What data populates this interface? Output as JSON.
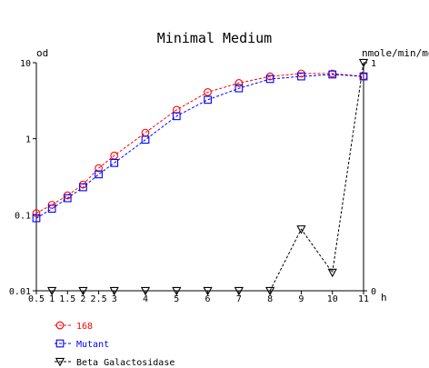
{
  "chart_data": {
    "type": "line",
    "title": "Minimal Medium",
    "left_axis_label": "od",
    "right_axis_label": "nmole/min/mg",
    "x_unit_label": "h",
    "x_ticks": [
      "0.5",
      "1",
      "1.5",
      "2",
      "2.5",
      "3",
      "4",
      "5",
      "6",
      "7",
      "8",
      "9",
      "10",
      "11"
    ],
    "left_ticks": [
      "10",
      "1",
      "0.1",
      "0.01"
    ],
    "right_ticks": [
      "1",
      "0"
    ],
    "xlim": [
      0.5,
      11
    ],
    "ylim_left": [
      0.01,
      10
    ],
    "ylim_right": [
      0,
      1
    ],
    "left_scale": "log",
    "grid": false,
    "legend_position": "bottom-left",
    "series": [
      {
        "name": "168",
        "axis": "left",
        "marker": "circle",
        "color": "#ff0000",
        "x": [
          0.5,
          1,
          1.5,
          2,
          2.5,
          3,
          4,
          5,
          6,
          7,
          8,
          9,
          10,
          11
        ],
        "y": [
          0.105,
          0.135,
          0.18,
          0.25,
          0.41,
          0.6,
          1.2,
          2.4,
          4.1,
          5.4,
          6.6,
          7.2,
          7.2,
          6.6
        ]
      },
      {
        "name": "Mutant",
        "axis": "left",
        "marker": "square",
        "color": "#0000ff",
        "x": [
          0.5,
          1,
          1.5,
          2,
          2.5,
          3,
          4,
          5,
          6,
          7,
          8,
          9,
          10,
          11
        ],
        "y": [
          0.09,
          0.12,
          0.165,
          0.23,
          0.34,
          0.48,
          0.97,
          1.98,
          3.25,
          4.6,
          6.1,
          6.6,
          7.0,
          6.6
        ]
      },
      {
        "name": "Beta Galactosidase",
        "axis": "right",
        "marker": "triangle-down",
        "color": "#000000",
        "x": [
          1,
          2,
          3,
          4,
          5,
          6,
          7,
          8,
          9,
          10,
          11
        ],
        "y": [
          0,
          0,
          0,
          0,
          0,
          0,
          0,
          0,
          0.27,
          0.08,
          1.0
        ]
      }
    ]
  }
}
